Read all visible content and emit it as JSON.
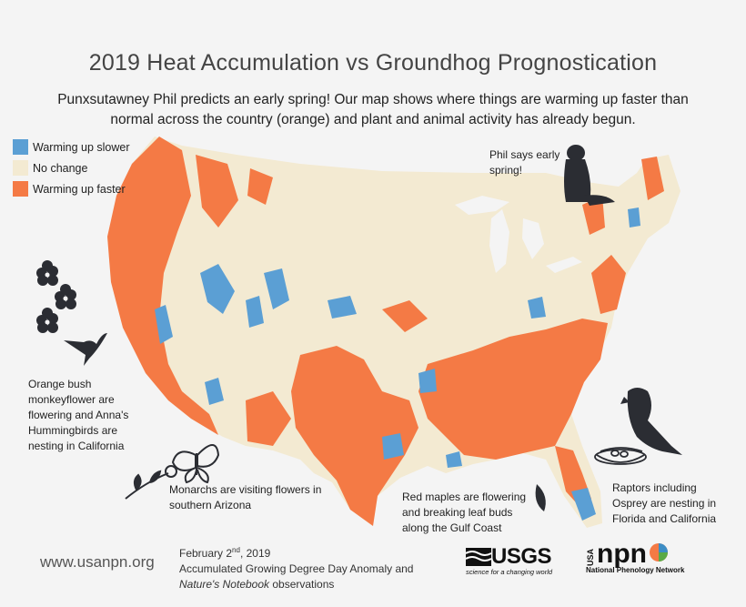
{
  "title": "2019 Heat Accumulation vs Groundhog Prognostication",
  "subtitle": {
    "line1": "Punxsutawney Phil predicts an early spring! Our map shows where things are warming up faster than",
    "line2": "normal across the country (orange) and plant and animal activity has already begun."
  },
  "legend": {
    "items": [
      {
        "label": "Warming up slower",
        "color": "#5b9fd4"
      },
      {
        "label": "No change",
        "color": "#f3ead2"
      },
      {
        "label": "Warming up faster",
        "color": "#f47a45"
      }
    ]
  },
  "annotations": {
    "phil": [
      "Phil says early",
      "spring!"
    ],
    "california": [
      "Orange bush",
      "monkeyflower are",
      "flowering and Anna's",
      "Hummingbirds are",
      "nesting in California"
    ],
    "arizona": [
      "Monarchs are visiting flowers in",
      "southern Arizona"
    ],
    "gulf": [
      "Red maples are flowering",
      "and breaking leaf buds",
      "along the Gulf Coast"
    ],
    "florida": [
      "Raptors including",
      "Osprey are nesting in",
      "Florida and California"
    ]
  },
  "footer": {
    "url": "www.usanpn.org",
    "date_main": "February 2",
    "date_sup": "nd",
    "date_year": ", 2019",
    "line2": "Accumulated Growing Degree Day Anomaly and",
    "line3_italic": "Nature's Notebook",
    "line3_rest": " observations"
  },
  "logos": {
    "usgs_name": "USGS",
    "usgs_tagline": "science for a changing world",
    "npn_usa": "USA",
    "npn_name": "npn",
    "npn_line1": "National Phenology Network"
  },
  "colors": {
    "slower": "#5b9fd4",
    "nochange": "#f3ead2",
    "faster": "#f47a45",
    "silhouette": "#2b2d33"
  }
}
